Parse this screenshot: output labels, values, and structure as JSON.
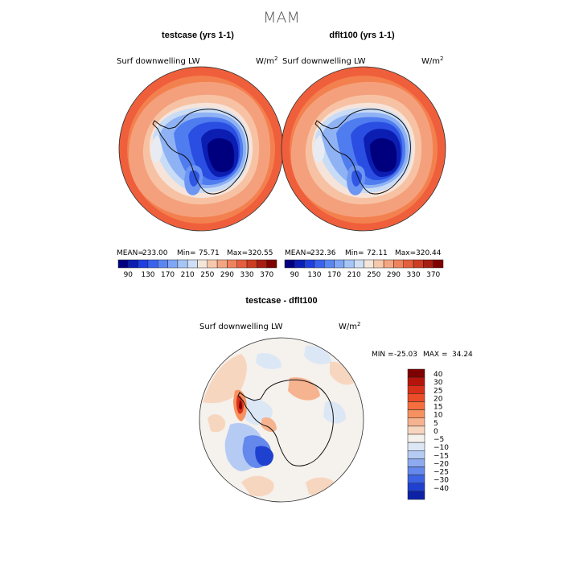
{
  "main_title": "MAM",
  "chart_data": [
    {
      "type": "heatmap",
      "projection": "south-polar-stereographic",
      "title": "testcase (yrs 1-1)",
      "field": "Surf downwelling LW",
      "units": "W/m",
      "units_exp": "2",
      "stats": {
        "mean_label": "MEAN=",
        "mean": "233.00",
        "min_label": "Min=",
        "min": "75.71",
        "max_label": "Max=",
        "max": "320.55"
      },
      "colorbar": {
        "orientation": "horizontal",
        "tick_labels": [
          "90",
          "130",
          "170",
          "210",
          "250",
          "290",
          "330",
          "370"
        ],
        "colors": [
          "#00007f",
          "#0b1fb4",
          "#1f3fe0",
          "#3a62ee",
          "#5a86f4",
          "#7fa7f6",
          "#a6c5f7",
          "#cfdff6",
          "#f5e6da",
          "#f7c9ac",
          "#f4a683",
          "#ef835e",
          "#e55e3e",
          "#cc3d22",
          "#a81d12",
          "#800000"
        ]
      },
      "values_by_region": {
        "antarctic_interior": "~90-130",
        "coast": "~210-250",
        "southern_ocean": "~290-330"
      }
    },
    {
      "type": "heatmap",
      "projection": "south-polar-stereographic",
      "title": "dflt100 (yrs 1-1)",
      "field": "Surf downwelling LW",
      "units": "W/m",
      "units_exp": "2",
      "stats": {
        "mean_label": "MEAN=",
        "mean": "232.36",
        "min_label": "Min=",
        "min": "72.11",
        "max_label": "Max=",
        "max": "320.44"
      },
      "colorbar": {
        "orientation": "horizontal",
        "tick_labels": [
          "90",
          "130",
          "170",
          "210",
          "250",
          "290",
          "330",
          "370"
        ],
        "colors": [
          "#00007f",
          "#0b1fb4",
          "#1f3fe0",
          "#3a62ee",
          "#5a86f4",
          "#7fa7f6",
          "#a6c5f7",
          "#cfdff6",
          "#f5e6da",
          "#f7c9ac",
          "#f4a683",
          "#ef835e",
          "#e55e3e",
          "#cc3d22",
          "#a81d12",
          "#800000"
        ]
      }
    },
    {
      "type": "heatmap",
      "projection": "south-polar-stereographic",
      "title": "testcase - dflt100",
      "field": "Surf downwelling LW",
      "units": "W/m",
      "units_exp": "2",
      "stats": {
        "min_label": "MIN =",
        "min": "-25.03",
        "max_label": "MAX =",
        "max": "34.24"
      },
      "colorbar": {
        "orientation": "vertical",
        "tick_labels": [
          "40",
          "30",
          "25",
          "20",
          "15",
          "10",
          "5",
          "0",
          "−5",
          "−10",
          "−15",
          "−20",
          "−25",
          "−30",
          "−40"
        ],
        "colors": [
          "#7f0000",
          "#b5140c",
          "#d8301a",
          "#ea4d27",
          "#f56e3e",
          "#f6925f",
          "#f6b38f",
          "#f7d6c0",
          "#f5f1ec",
          "#dce7f6",
          "#b6cbf4",
          "#8eabf0",
          "#6488ec",
          "#3d63e4",
          "#1f41cf",
          "#0d22a6"
        ]
      },
      "values_by_region": {
        "antarctic_peninsula": "~20-40",
        "weddell_sector": "~-20 to -25",
        "elsewhere": "~-5 to 5"
      }
    }
  ]
}
